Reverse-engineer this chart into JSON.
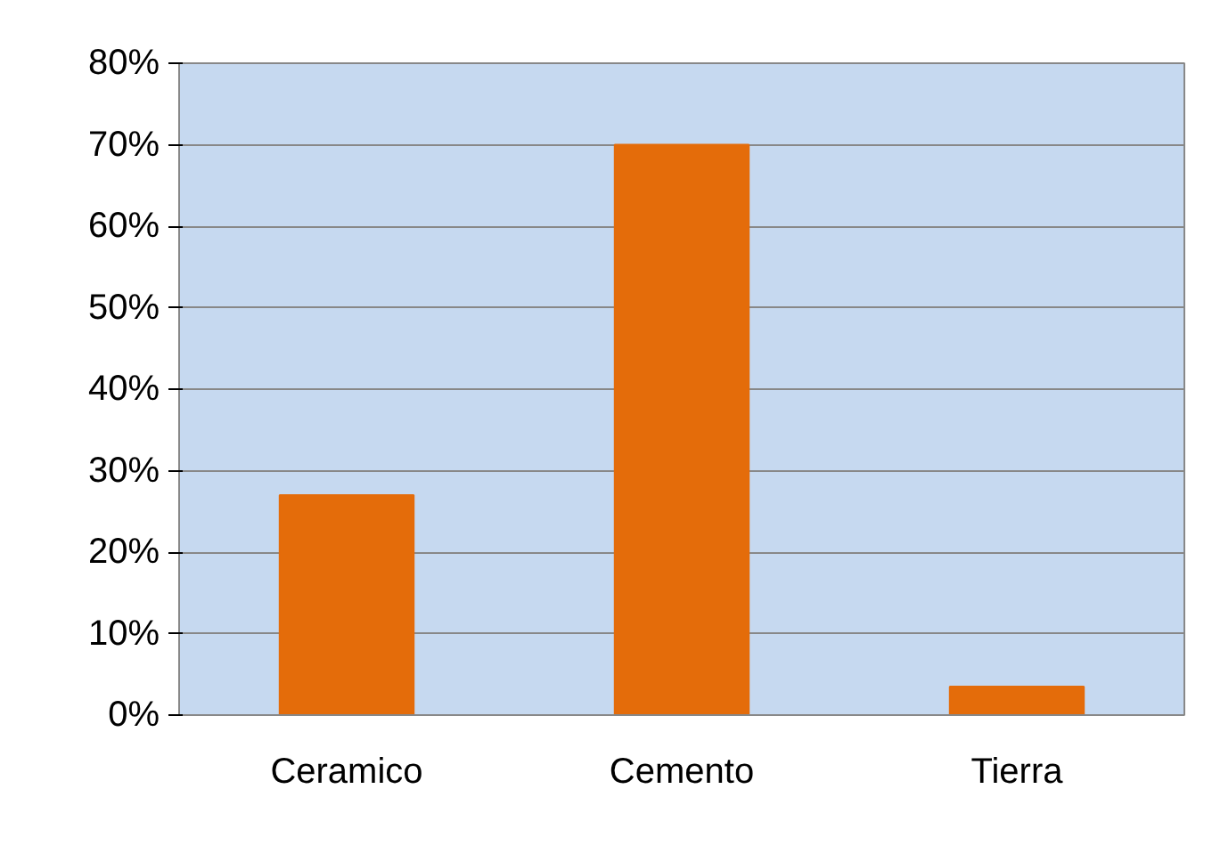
{
  "chart_data": {
    "type": "bar",
    "categories": [
      "Ceramico",
      "Cemento",
      "Tierra"
    ],
    "values": [
      27,
      70,
      3.5
    ],
    "color": "#e46c0a",
    "ylim": [
      0,
      80
    ],
    "yticks": [
      {
        "value": 0,
        "label": "0%"
      },
      {
        "value": 10,
        "label": "10%"
      },
      {
        "value": 20,
        "label": "20%"
      },
      {
        "value": 30,
        "label": "30%"
      },
      {
        "value": 40,
        "label": "40%"
      },
      {
        "value": 50,
        "label": "50%"
      },
      {
        "value": 60,
        "label": "60%"
      },
      {
        "value": 70,
        "label": "70%"
      },
      {
        "value": 80,
        "label": "80%"
      }
    ],
    "grid": "y"
  }
}
